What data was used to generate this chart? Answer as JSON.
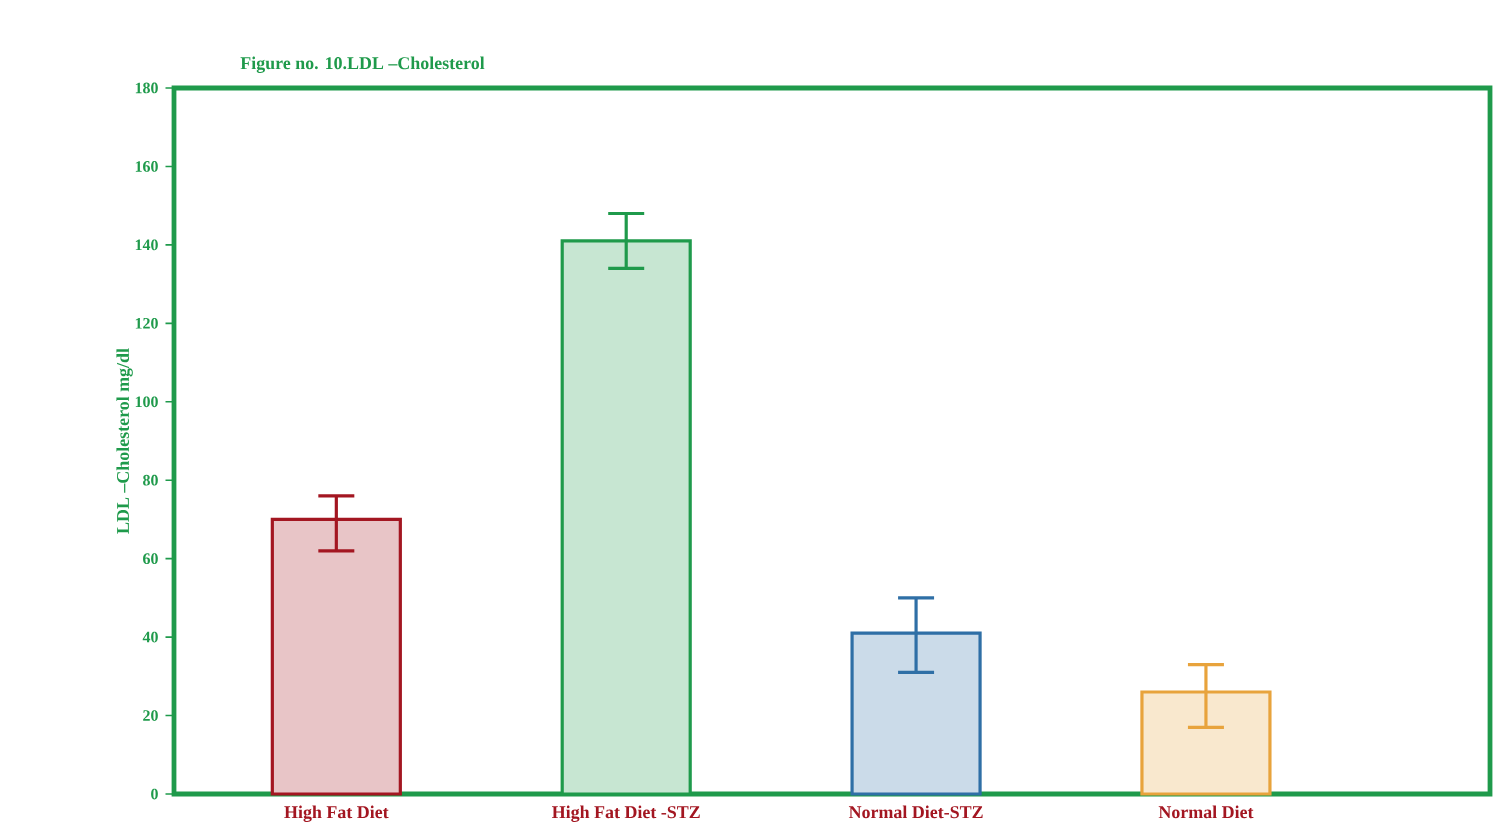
{
  "chart_data": {
    "type": "bar",
    "title": "Figure no. 10.LDL –Cholesterol",
    "ylabel": "LDL –Cholesterol mg/dl",
    "categories": [
      "High Fat Diet",
      "High Fat Diet -STZ",
      "Normal Diet-STZ",
      "Normal Diet"
    ],
    "values": [
      70,
      141,
      41,
      26
    ],
    "errors": [
      [
        62,
        76
      ],
      [
        134,
        148
      ],
      [
        31,
        50
      ],
      [
        17,
        33
      ]
    ],
    "colors": [
      "#a31621",
      "#1f9a4b",
      "#2f6fa6",
      "#e8a33c"
    ],
    "ylim": [
      0,
      180
    ],
    "yticks": [
      0,
      20,
      40,
      60,
      80,
      100,
      120,
      140,
      160,
      180
    ]
  }
}
